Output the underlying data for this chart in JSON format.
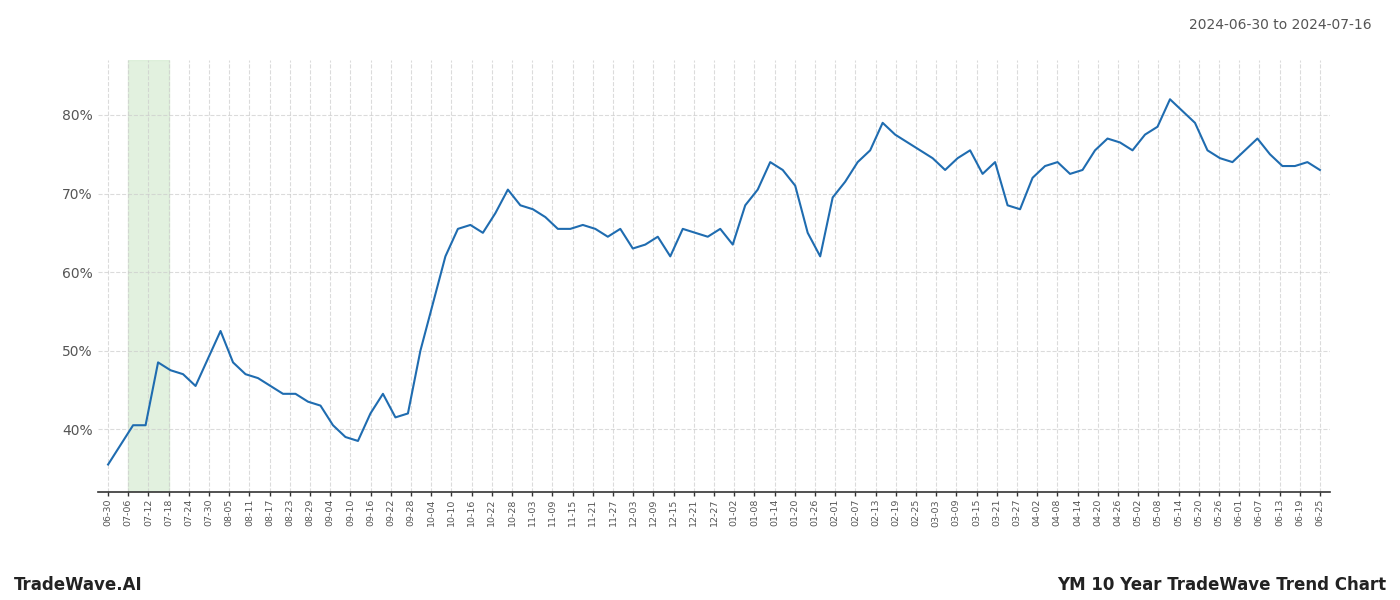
{
  "title_top_right": "2024-06-30 to 2024-07-16",
  "bottom_left": "TradeWave.AI",
  "bottom_right": "YM 10 Year TradeWave Trend Chart",
  "line_color": "#1f6cb0",
  "line_width": 1.5,
  "background_color": "#ffffff",
  "grid_color": "#cccccc",
  "grid_style": "--",
  "grid_alpha": 0.7,
  "shade_start_label": "07-06",
  "shade_end_label": "07-18",
  "shade_color": "#d6ecd2",
  "shade_alpha": 0.7,
  "ylim": [
    32,
    87
  ],
  "yticks": [
    40,
    50,
    60,
    70,
    80
  ],
  "ytick_labels": [
    "40%",
    "50%",
    "60%",
    "70%",
    "80%"
  ],
  "xtick_labels": [
    "06-30",
    "07-06",
    "07-12",
    "07-18",
    "07-24",
    "07-30",
    "08-05",
    "08-11",
    "08-17",
    "08-23",
    "08-29",
    "09-04",
    "09-10",
    "09-16",
    "09-22",
    "09-28",
    "10-04",
    "10-10",
    "10-16",
    "10-22",
    "10-28",
    "11-03",
    "11-09",
    "11-15",
    "11-21",
    "11-27",
    "12-03",
    "12-09",
    "12-15",
    "12-21",
    "12-27",
    "01-02",
    "01-08",
    "01-14",
    "01-20",
    "01-26",
    "02-01",
    "02-07",
    "02-13",
    "02-19",
    "02-25",
    "03-03",
    "03-09",
    "03-15",
    "03-21",
    "03-27",
    "04-02",
    "04-08",
    "04-14",
    "04-20",
    "04-26",
    "05-02",
    "05-08",
    "05-14",
    "05-20",
    "05-26",
    "06-01",
    "06-07",
    "06-13",
    "06-19",
    "06-25"
  ],
  "values": [
    35.5,
    38.0,
    40.5,
    40.5,
    48.5,
    47.5,
    47.0,
    45.5,
    49.0,
    52.5,
    48.5,
    47.0,
    46.5,
    45.5,
    44.5,
    44.5,
    43.5,
    43.0,
    40.5,
    39.0,
    38.5,
    42.0,
    44.5,
    41.5,
    42.0,
    50.0,
    56.0,
    62.0,
    65.5,
    66.0,
    65.0,
    67.5,
    70.5,
    68.5,
    68.0,
    67.0,
    65.5,
    65.5,
    66.0,
    65.5,
    64.5,
    65.5,
    63.0,
    63.5,
    64.5,
    62.0,
    65.5,
    65.0,
    64.5,
    65.5,
    63.5,
    68.5,
    70.5,
    74.0,
    73.0,
    71.0,
    65.0,
    62.0,
    69.5,
    71.5,
    74.0,
    75.5,
    79.0,
    77.5,
    76.5,
    75.5,
    74.5,
    73.0,
    74.5,
    75.5,
    72.5,
    74.0,
    68.5,
    68.0,
    72.0,
    73.5,
    74.0,
    72.5,
    73.0,
    75.5,
    77.0,
    76.5,
    75.5,
    77.5,
    78.5,
    82.0,
    80.5,
    79.0,
    75.5,
    74.5,
    74.0,
    75.5,
    77.0,
    75.0,
    73.5,
    73.5,
    74.0,
    73.0
  ]
}
